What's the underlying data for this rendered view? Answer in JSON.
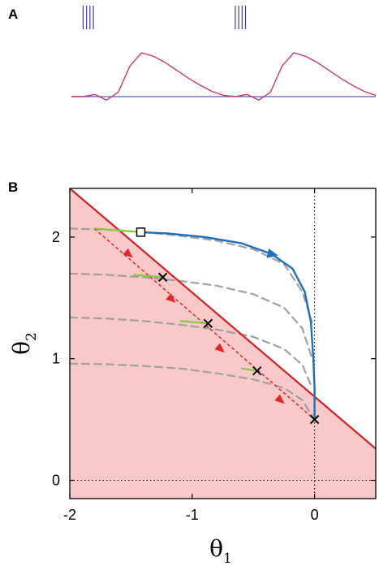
{
  "panels": {
    "a": {
      "label": "A"
    },
    "b": {
      "label": "B"
    }
  },
  "colors": {
    "trace": "#c8377a",
    "baseline": "#5a5fa8",
    "spikes": "#3d3f9b",
    "region_fill": "#f9c9c9",
    "boundary": "#d42020",
    "trajectory": "#1f6fbf",
    "reset_lines": "#a0a0a0",
    "sliding_arrows": "#e52424",
    "segments": "#8dc63f",
    "markers": "#000000"
  },
  "chart_data": [
    {
      "type": "line",
      "panel": "A",
      "title": "",
      "xlabel": "",
      "ylabel": "",
      "series": [
        {
          "values": [
            0,
            0,
            0.05,
            -0.08,
            0.1,
            0.7,
            1.0,
            0.92,
            0.78,
            0.6,
            0.42,
            0.26,
            0.12,
            0.03,
            0,
            0.05,
            -0.08,
            0.1,
            0.7,
            1.0,
            0.92,
            0.78,
            0.6,
            0.42,
            0.26,
            0.12,
            0.03
          ]
        }
      ],
      "spike_bursts": [
        {
          "count": 4
        },
        {
          "count": 4
        }
      ]
    },
    {
      "type": "line",
      "panel": "B",
      "title": "",
      "xlabel": "θ",
      "xlabel_sub": "1",
      "ylabel": "θ",
      "ylabel_sub": "2",
      "xlim": [
        -2,
        0.5
      ],
      "ylim": [
        -0.15,
        2.4
      ],
      "xticks": [
        -2,
        -1,
        0
      ],
      "xtick_labels": [
        "-2",
        "-1",
        "0"
      ],
      "yticks": [
        0,
        1,
        2
      ],
      "ytick_labels": [
        "0",
        "1",
        "2"
      ],
      "shaded_region": {
        "description_key": "below boundary"
      },
      "boundary_line": {
        "x": [
          -2.0,
          0.5
        ],
        "y": [
          2.4,
          0.26
        ]
      },
      "trajectory": {
        "x": [
          -1.42,
          -1.2,
          -0.9,
          -0.6,
          -0.35,
          -0.18,
          -0.08,
          -0.03,
          -0.01,
          0.0,
          0.0
        ],
        "y": [
          2.04,
          2.03,
          2.0,
          1.95,
          1.86,
          1.74,
          1.55,
          1.3,
          1.0,
          0.75,
          0.5
        ]
      },
      "reset_curves": [
        {
          "x": [
            -2.0,
            -1.7,
            -1.4,
            -1.1,
            -0.8,
            -0.5,
            -0.25,
            -0.1,
            -0.02
          ],
          "y": [
            2.07,
            2.06,
            2.04,
            2.01,
            1.97,
            1.9,
            1.78,
            1.55,
            1.3
          ]
        },
        {
          "x": [
            -2.0,
            -1.7,
            -1.4,
            -1.1,
            -0.8,
            -0.5,
            -0.25,
            -0.1,
            -0.02
          ],
          "y": [
            1.7,
            1.69,
            1.67,
            1.64,
            1.6,
            1.53,
            1.42,
            1.25,
            1.0
          ]
        },
        {
          "x": [
            -2.0,
            -1.7,
            -1.4,
            -1.1,
            -0.8,
            -0.5,
            -0.25,
            -0.1,
            -0.02
          ],
          "y": [
            1.34,
            1.33,
            1.31,
            1.28,
            1.24,
            1.18,
            1.08,
            0.95,
            0.76
          ]
        },
        {
          "x": [
            -2.0,
            -1.7,
            -1.4,
            -1.1,
            -0.8,
            -0.5,
            -0.25,
            -0.1,
            -0.02
          ],
          "y": [
            0.96,
            0.955,
            0.94,
            0.92,
            0.88,
            0.83,
            0.76,
            0.66,
            0.53
          ]
        }
      ],
      "sliding_path": {
        "x": [
          -1.8,
          0.0
        ],
        "y": [
          2.07,
          0.5
        ]
      },
      "sliding_arrow_points": [
        {
          "x": -1.52,
          "y": 1.86
        },
        {
          "x": -1.17,
          "y": 1.49
        },
        {
          "x": -0.77,
          "y": 1.08
        },
        {
          "x": -0.28,
          "y": 0.66
        }
      ],
      "green_segments": [
        {
          "x": [
            -1.8,
            -1.42
          ],
          "y": [
            2.07,
            2.04
          ]
        },
        {
          "x": [
            -1.48,
            -1.24
          ],
          "y": [
            1.69,
            1.67
          ]
        },
        {
          "x": [
            -1.1,
            -0.87
          ],
          "y": [
            1.31,
            1.29
          ]
        },
        {
          "x": [
            -0.6,
            -0.47
          ],
          "y": [
            0.92,
            0.9
          ]
        }
      ],
      "square_marker": {
        "x": -1.42,
        "y": 2.04
      },
      "cross_markers": [
        {
          "x": -1.24,
          "y": 1.67
        },
        {
          "x": -0.87,
          "y": 1.29
        },
        {
          "x": -0.47,
          "y": 0.9
        },
        {
          "x": 0.0,
          "y": 0.5
        }
      ],
      "trajectory_arrow": {
        "x": -0.35,
        "y": 1.86
      },
      "reference_lines": [
        {
          "axis": "x",
          "value": 0
        },
        {
          "axis": "y",
          "value": 0
        }
      ]
    }
  ]
}
